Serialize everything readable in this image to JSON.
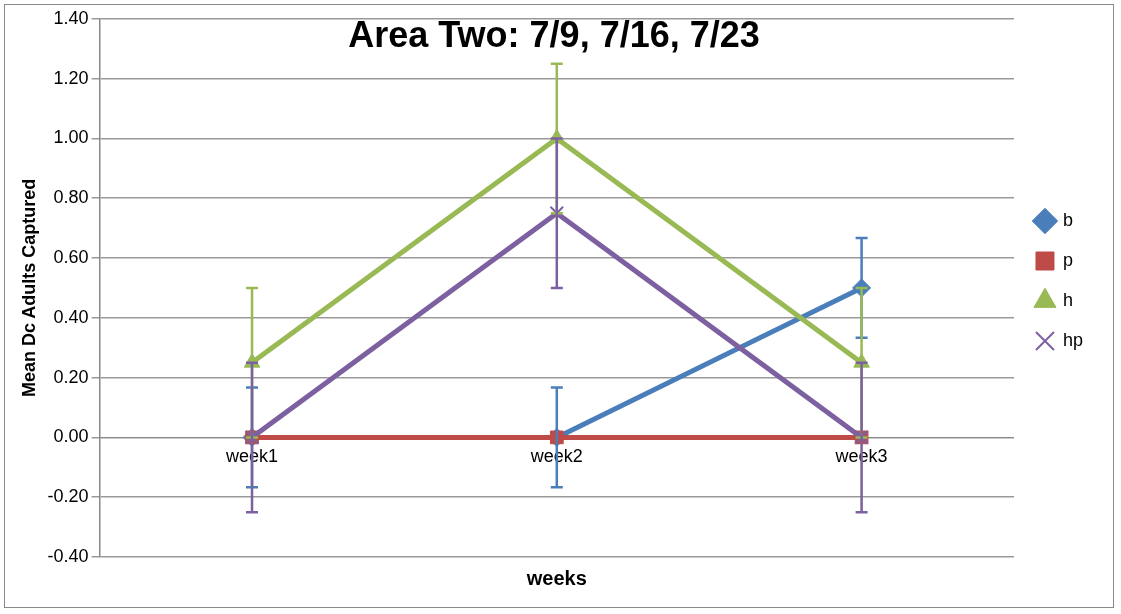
{
  "chart_data": {
    "type": "line",
    "title": "Area Two: 7/9, 7/16, 7/23",
    "xlabel": "weeks",
    "ylabel": "Mean Dc Adults Captured",
    "categories": [
      "week1",
      "week2",
      "week3"
    ],
    "series": [
      {
        "name": "b",
        "color": "#4a7ebb",
        "marker": "diamond",
        "values": [
          0,
          0,
          0.5
        ],
        "errors": [
          0.167,
          0.167,
          0.167
        ]
      },
      {
        "name": "p",
        "color": "#be4b48",
        "marker": "square",
        "values": [
          0,
          0,
          0
        ]
      },
      {
        "name": "h",
        "color": "#98b954",
        "marker": "triangle",
        "values": [
          0.25,
          1.0,
          0.25
        ],
        "errors": [
          0.25,
          0.25,
          0.25
        ]
      },
      {
        "name": "hp",
        "color": "#7d60a0",
        "marker": "cross",
        "values": [
          0,
          0.75,
          0
        ],
        "errors": [
          0.25,
          0.25,
          0.25
        ]
      }
    ],
    "ylim": [
      -0.4,
      1.4
    ],
    "yticks": [
      {
        "value": -0.4,
        "label": "-0.40"
      },
      {
        "value": -0.2,
        "label": "-0.20"
      },
      {
        "value": 0,
        "label": "0.00"
      },
      {
        "value": 0.2,
        "label": "0.20"
      },
      {
        "value": 0.4,
        "label": "0.40"
      },
      {
        "value": 0.6,
        "label": "0.60"
      },
      {
        "value": 0.8,
        "label": "0.80"
      },
      {
        "value": 1.0,
        "label": "1.00"
      },
      {
        "value": 1.2,
        "label": "1.20"
      },
      {
        "value": 1.4,
        "label": "1.40"
      }
    ],
    "grid": "y",
    "legend": "right"
  }
}
